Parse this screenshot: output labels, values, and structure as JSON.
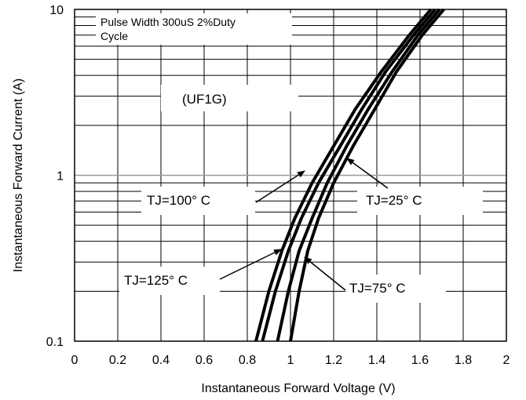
{
  "chart_data": {
    "type": "line",
    "title": "",
    "xlabel": "Instantaneous Forward Voltage (V)",
    "ylabel": "Instantaneous Forward Current (A)",
    "xlim": [
      0,
      2
    ],
    "ylim": [
      0.1,
      10
    ],
    "yscale": "log",
    "grid": true,
    "x_tick_labels": [
      "0",
      "0.2",
      "0.4",
      "0.6",
      "0.8",
      "1",
      "1.2",
      "1.4",
      "1.6",
      "1.8",
      "2"
    ],
    "y_tick_labels": [
      "0.1",
      "1",
      "10"
    ],
    "series": [
      {
        "name": "TJ=125°C",
        "x": [
          0.84,
          0.9,
          0.96,
          1.02,
          1.1,
          1.2,
          1.3,
          1.42,
          1.55,
          1.65
        ],
        "y": [
          0.1,
          0.2,
          0.35,
          0.55,
          0.9,
          1.5,
          2.5,
          4.2,
          7.0,
          10.0
        ]
      },
      {
        "name": "TJ=100°C",
        "x": [
          0.87,
          0.93,
          0.99,
          1.05,
          1.13,
          1.23,
          1.33,
          1.44,
          1.57,
          1.67
        ],
        "y": [
          0.1,
          0.2,
          0.35,
          0.55,
          0.9,
          1.5,
          2.5,
          4.2,
          7.0,
          10.0
        ]
      },
      {
        "name": "TJ=75°C",
        "x": [
          0.94,
          0.99,
          1.04,
          1.1,
          1.17,
          1.26,
          1.36,
          1.47,
          1.59,
          1.69
        ],
        "y": [
          0.1,
          0.2,
          0.35,
          0.55,
          0.9,
          1.5,
          2.5,
          4.2,
          7.0,
          10.0
        ]
      },
      {
        "name": "TJ=25°C",
        "x": [
          1.0,
          1.04,
          1.08,
          1.13,
          1.2,
          1.29,
          1.39,
          1.49,
          1.61,
          1.71
        ],
        "y": [
          0.1,
          0.2,
          0.35,
          0.55,
          0.9,
          1.5,
          2.5,
          4.2,
          7.0,
          10.0
        ]
      }
    ],
    "annotations": {
      "note_line1": "Pulse Width 300uS 2%Duty",
      "note_line2": "Cycle",
      "part": "(UF1G)",
      "label_125": "TJ=125°  C",
      "label_100": "TJ=100°  C",
      "label_75": "TJ=75°  C",
      "label_25": "TJ=25°  C"
    },
    "colors": {
      "curve": "#000000",
      "grid": "#000000",
      "major_grid": "#999999"
    }
  }
}
